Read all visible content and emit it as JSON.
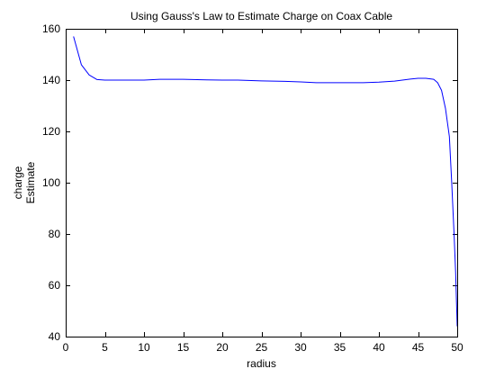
{
  "chart_data": {
    "type": "line",
    "title": "Using Gauss's Law to Estimate Charge on Coax Cable",
    "xlabel": "radius",
    "ylabel": [
      "charge",
      "Estimate"
    ],
    "xlim": [
      0,
      50
    ],
    "ylim": [
      40,
      160
    ],
    "xticks": [
      0,
      5,
      10,
      15,
      20,
      25,
      30,
      35,
      40,
      45,
      50
    ],
    "yticks": [
      40,
      60,
      80,
      100,
      120,
      140,
      160
    ],
    "grid": false,
    "line_color": "#0000ff",
    "series": [
      {
        "x": [
          1,
          2,
          3,
          4,
          5,
          6,
          8,
          10,
          12,
          15,
          18,
          20,
          22,
          25,
          28,
          30,
          32,
          35,
          38,
          40,
          42,
          44,
          45,
          46,
          47,
          47.5,
          48,
          48.5,
          49,
          49.3,
          49.6,
          49.8,
          50
        ],
        "y": [
          157,
          146,
          142,
          140.2,
          140,
          140,
          140,
          140,
          140.3,
          140.3,
          140.1,
          140,
          140,
          139.7,
          139.5,
          139.3,
          139,
          139,
          139,
          139.2,
          139.6,
          140.4,
          140.7,
          140.7,
          140.3,
          139,
          136,
          129,
          118,
          100,
          80,
          65,
          44
        ]
      }
    ]
  }
}
